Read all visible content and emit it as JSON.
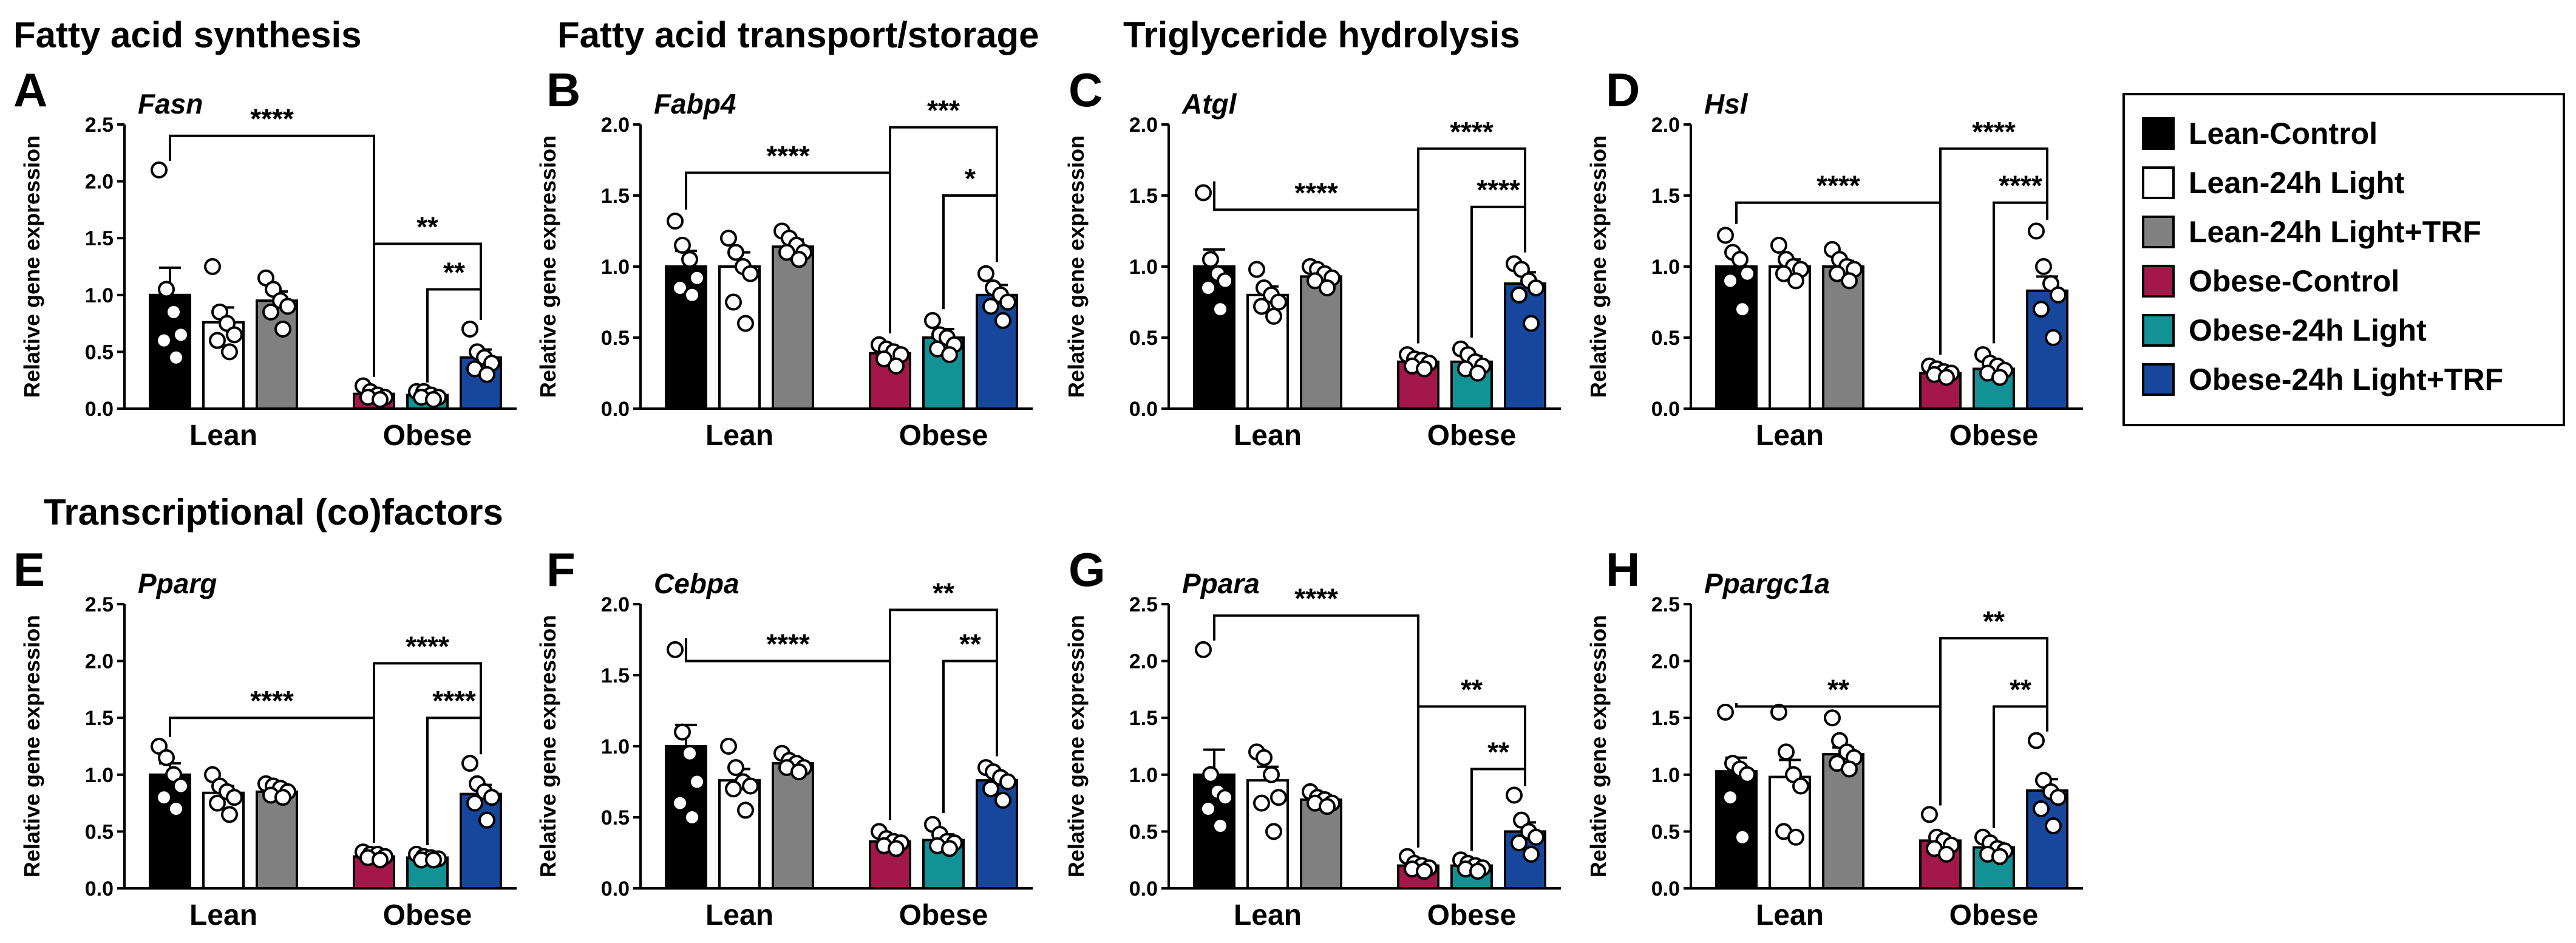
{
  "section_titles": {
    "synthesis": "Fatty acid synthesis",
    "transport": "Fatty acid transport/storage",
    "hydrolysis": "Triglyceride hydrolysis",
    "transcription": "Transcriptional (co)factors"
  },
  "legend": [
    {
      "name": "Lean-Control",
      "color": "#000000"
    },
    {
      "name": "Lean-24h Light",
      "color": "#ffffff"
    },
    {
      "name": "Lean-24h Light+TRF",
      "color": "#808080"
    },
    {
      "name": "Obese-Control",
      "color": "#a3174b"
    },
    {
      "name": "Obese-24h Light",
      "color": "#129295"
    },
    {
      "name": "Obese-24h Light+TRF",
      "color": "#16479c"
    }
  ],
  "chart_data": [
    {
      "type": "bar",
      "panel": "A",
      "title": "Fasn",
      "ylabel": "Relative gene expression",
      "ylim": [
        0,
        2.5
      ],
      "yticks": [
        "0.0",
        "0.5",
        "1.0",
        "1.5",
        "2.0",
        "2.5"
      ],
      "groups": [
        "Lean",
        "Obese"
      ],
      "series": [
        "Lean-Control",
        "Lean-24h Light",
        "Lean-24h Light+TRF",
        "Obese-Control",
        "Obese-24h Light",
        "Obese-24h Light+TRF"
      ],
      "values": [
        1.0,
        0.76,
        0.95,
        0.13,
        0.12,
        0.45
      ],
      "errors": [
        0.24,
        0.13,
        0.08,
        0.03,
        0.02,
        0.07
      ],
      "points": [
        [
          2.1,
          1.05,
          0.85,
          0.65,
          0.6,
          0.45
        ],
        [
          1.25,
          0.85,
          0.75,
          0.65,
          0.6,
          0.5
        ],
        [
          1.15,
          1.05,
          0.95,
          0.9,
          0.85,
          0.7
        ],
        [
          0.2,
          0.15,
          0.12,
          0.1,
          0.1,
          0.08
        ],
        [
          0.15,
          0.15,
          0.12,
          0.1,
          0.1,
          0.08
        ],
        [
          0.7,
          0.5,
          0.45,
          0.4,
          0.35,
          0.3
        ]
      ],
      "brackets": [
        {
          "from": 0,
          "to": 3,
          "level": 2.4,
          "label": "****"
        },
        {
          "from": 3,
          "to": 5,
          "level": 1.45,
          "label": "**"
        },
        {
          "from": 4,
          "to": 5,
          "level": 1.05,
          "label": "**"
        }
      ]
    },
    {
      "type": "bar",
      "panel": "B",
      "title": "Fabp4",
      "ylabel": "Relative gene expression",
      "ylim": [
        0,
        2.0
      ],
      "yticks": [
        "0.0",
        "0.5",
        "1.0",
        "1.5",
        "2.0"
      ],
      "groups": [
        "Lean",
        "Obese"
      ],
      "series": [
        "Lean-Control",
        "Lean-24h Light",
        "Lean-24h Light+TRF",
        "Obese-Control",
        "Obese-24h Light",
        "Obese-24h Light+TRF"
      ],
      "values": [
        1.0,
        1.0,
        1.14,
        0.39,
        0.5,
        0.8
      ],
      "errors": [
        0.11,
        0.1,
        0.05,
        0.03,
        0.06,
        0.07
      ],
      "points": [
        [
          1.32,
          1.15,
          1.05,
          0.92,
          0.85,
          0.8
        ],
        [
          1.2,
          1.1,
          1.0,
          0.95,
          0.75,
          0.6
        ],
        [
          1.25,
          1.2,
          1.15,
          1.1,
          1.1,
          1.05
        ],
        [
          0.45,
          0.42,
          0.4,
          0.38,
          0.35,
          0.3
        ],
        [
          0.62,
          0.52,
          0.5,
          0.45,
          0.42,
          0.38
        ],
        [
          0.95,
          0.85,
          0.8,
          0.75,
          0.72,
          0.62
        ]
      ],
      "brackets": [
        {
          "from": 0,
          "to": 3,
          "level": 1.66,
          "label": "****"
        },
        {
          "from": 3,
          "to": 5,
          "level": 1.98,
          "label": "***"
        },
        {
          "from": 4,
          "to": 5,
          "level": 1.5,
          "label": "*"
        }
      ]
    },
    {
      "type": "bar",
      "panel": "C",
      "title": "Atgl",
      "ylabel": "Relative gene expression",
      "ylim": [
        0,
        2.0
      ],
      "yticks": [
        "0.0",
        "0.5",
        "1.0",
        "1.5",
        "2.0"
      ],
      "groups": [
        "Lean",
        "Obese"
      ],
      "series": [
        "Lean-Control",
        "Lean-24h Light",
        "Lean-24h Light+TRF",
        "Obese-Control",
        "Obese-24h Light",
        "Obese-24h Light+TRF"
      ],
      "values": [
        1.0,
        0.8,
        0.93,
        0.33,
        0.33,
        0.88
      ],
      "errors": [
        0.12,
        0.06,
        0.04,
        0.03,
        0.04,
        0.08
      ],
      "points": [
        [
          1.52,
          1.05,
          0.95,
          0.9,
          0.85,
          0.7
        ],
        [
          0.98,
          0.85,
          0.8,
          0.75,
          0.72,
          0.65
        ],
        [
          1.0,
          0.98,
          0.95,
          0.92,
          0.9,
          0.85
        ],
        [
          0.38,
          0.35,
          0.34,
          0.32,
          0.3,
          0.28
        ],
        [
          0.42,
          0.38,
          0.33,
          0.3,
          0.28,
          0.25
        ],
        [
          1.02,
          0.98,
          0.9,
          0.85,
          0.8,
          0.6
        ]
      ],
      "brackets": [
        {
          "from": 0,
          "to": 3,
          "level": 1.4,
          "label": "****"
        },
        {
          "from": 3,
          "to": 5,
          "level": 1.83,
          "label": "****"
        },
        {
          "from": 4,
          "to": 5,
          "level": 1.42,
          "label": "****"
        }
      ]
    },
    {
      "type": "bar",
      "panel": "D",
      "title": "Hsl",
      "ylabel": "Relative gene expression",
      "ylim": [
        0,
        2.0
      ],
      "yticks": [
        "0.0",
        "0.5",
        "1.0",
        "1.5",
        "2.0"
      ],
      "groups": [
        "Lean",
        "Obese"
      ],
      "series": [
        "Lean-Control",
        "Lean-24h Light",
        "Lean-24h Light+TRF",
        "Obese-Control",
        "Obese-24h Light",
        "Obese-24h Light+TRF"
      ],
      "values": [
        1.0,
        1.0,
        1.0,
        0.25,
        0.28,
        0.83
      ],
      "errors": [
        0.08,
        0.05,
        0.04,
        0.02,
        0.04,
        0.1
      ],
      "points": [
        [
          1.22,
          1.1,
          1.05,
          0.95,
          0.9,
          0.7
        ],
        [
          1.15,
          1.05,
          1.0,
          0.98,
          0.95,
          0.9
        ],
        [
          1.12,
          1.05,
          1.0,
          0.98,
          0.95,
          0.9
        ],
        [
          0.3,
          0.28,
          0.26,
          0.25,
          0.24,
          0.22
        ],
        [
          0.38,
          0.32,
          0.3,
          0.27,
          0.25,
          0.22
        ],
        [
          1.25,
          1.0,
          0.88,
          0.8,
          0.7,
          0.5
        ]
      ],
      "brackets": [
        {
          "from": 0,
          "to": 3,
          "level": 1.45,
          "label": "****"
        },
        {
          "from": 3,
          "to": 5,
          "level": 1.83,
          "label": "****"
        },
        {
          "from": 4,
          "to": 5,
          "level": 1.45,
          "label": "****"
        }
      ]
    },
    {
      "type": "bar",
      "panel": "E",
      "title": "Pparg",
      "ylabel": "Relative gene expression",
      "ylim": [
        0,
        2.5
      ],
      "yticks": [
        "0.0",
        "0.5",
        "1.0",
        "1.5",
        "2.0",
        "2.5"
      ],
      "groups": [
        "Lean",
        "Obese"
      ],
      "series": [
        "Lean-Control",
        "Lean-24h Light",
        "Lean-24h Light+TRF",
        "Obese-Control",
        "Obese-24h Light",
        "Obese-24h Light+TRF"
      ],
      "values": [
        1.0,
        0.84,
        0.85,
        0.28,
        0.27,
        0.83
      ],
      "errors": [
        0.1,
        0.06,
        0.03,
        0.02,
        0.02,
        0.08
      ],
      "points": [
        [
          1.25,
          1.15,
          1.0,
          0.9,
          0.8,
          0.7
        ],
        [
          1.0,
          0.9,
          0.85,
          0.8,
          0.75,
          0.65
        ],
        [
          0.92,
          0.9,
          0.88,
          0.85,
          0.82,
          0.8
        ],
        [
          0.32,
          0.3,
          0.3,
          0.28,
          0.27,
          0.25
        ],
        [
          0.3,
          0.28,
          0.27,
          0.26,
          0.25,
          0.25
        ],
        [
          1.1,
          0.92,
          0.85,
          0.8,
          0.75,
          0.6
        ]
      ],
      "brackets": [
        {
          "from": 0,
          "to": 3,
          "level": 1.5,
          "label": "****"
        },
        {
          "from": 3,
          "to": 5,
          "level": 1.98,
          "label": "****"
        },
        {
          "from": 4,
          "to": 5,
          "level": 1.5,
          "label": "****"
        }
      ]
    },
    {
      "type": "bar",
      "panel": "F",
      "title": "Cebpa",
      "ylabel": "Relative gene expression",
      "ylim": [
        0,
        2.0
      ],
      "yticks": [
        "0.0",
        "0.5",
        "1.0",
        "1.5",
        "2.0"
      ],
      "groups": [
        "Lean",
        "Obese"
      ],
      "series": [
        "Lean-Control",
        "Lean-24h Light",
        "Lean-24h Light+TRF",
        "Obese-Control",
        "Obese-24h Light",
        "Obese-24h Light+TRF"
      ],
      "values": [
        1.0,
        0.76,
        0.88,
        0.33,
        0.34,
        0.76
      ],
      "errors": [
        0.15,
        0.08,
        0.03,
        0.02,
        0.04,
        0.05
      ],
      "points": [
        [
          1.68,
          1.1,
          0.95,
          0.75,
          0.6,
          0.5
        ],
        [
          1.0,
          0.85,
          0.75,
          0.72,
          0.7,
          0.55
        ],
        [
          0.95,
          0.9,
          0.88,
          0.85,
          0.85,
          0.82
        ],
        [
          0.4,
          0.35,
          0.33,
          0.32,
          0.3,
          0.28
        ],
        [
          0.45,
          0.38,
          0.33,
          0.32,
          0.3,
          0.28
        ],
        [
          0.85,
          0.82,
          0.78,
          0.75,
          0.7,
          0.62
        ]
      ],
      "brackets": [
        {
          "from": 0,
          "to": 3,
          "level": 1.6,
          "label": "****"
        },
        {
          "from": 3,
          "to": 5,
          "level": 1.96,
          "label": "**"
        },
        {
          "from": 4,
          "to": 5,
          "level": 1.6,
          "label": "**"
        }
      ]
    },
    {
      "type": "bar",
      "panel": "G",
      "title": "Ppara",
      "ylabel": "Relative gene expression",
      "ylim": [
        0,
        2.5
      ],
      "yticks": [
        "0.0",
        "0.5",
        "1.0",
        "1.5",
        "2.0",
        "2.5"
      ],
      "groups": [
        "Lean",
        "Obese"
      ],
      "series": [
        "Lean-Control",
        "Lean-24h Light",
        "Lean-24h Light+TRF",
        "Obese-Control",
        "Obese-24h Light",
        "Obese-24h Light+TRF"
      ],
      "values": [
        1.0,
        0.95,
        0.78,
        0.2,
        0.2,
        0.5
      ],
      "errors": [
        0.22,
        0.12,
        0.04,
        0.02,
        0.02,
        0.08
      ],
      "points": [
        [
          2.1,
          1.0,
          0.85,
          0.8,
          0.7,
          0.55
        ],
        [
          1.2,
          1.15,
          1.0,
          0.8,
          0.75,
          0.5
        ],
        [
          0.85,
          0.8,
          0.78,
          0.75,
          0.75,
          0.72
        ],
        [
          0.28,
          0.22,
          0.2,
          0.18,
          0.17,
          0.15
        ],
        [
          0.25,
          0.22,
          0.2,
          0.18,
          0.17,
          0.15
        ],
        [
          0.82,
          0.6,
          0.5,
          0.45,
          0.4,
          0.3
        ]
      ],
      "brackets": [
        {
          "from": 0,
          "to": 3,
          "level": 2.4,
          "label": "****"
        },
        {
          "from": 3,
          "to": 5,
          "level": 1.6,
          "label": "**"
        },
        {
          "from": 4,
          "to": 5,
          "level": 1.05,
          "label": "**"
        }
      ]
    },
    {
      "type": "bar",
      "panel": "H",
      "title": "Ppargc1a",
      "ylabel": "Relative gene expression",
      "ylim": [
        0,
        2.5
      ],
      "yticks": [
        "0.0",
        "0.5",
        "1.0",
        "1.5",
        "2.0",
        "2.5"
      ],
      "groups": [
        "Lean",
        "Obese"
      ],
      "series": [
        "Lean-Control",
        "Lean-24h Light",
        "Lean-24h Light+TRF",
        "Obese-Control",
        "Obese-24h Light",
        "Obese-24h Light+TRF"
      ],
      "values": [
        1.03,
        0.98,
        1.18,
        0.42,
        0.36,
        0.86
      ],
      "errors": [
        0.12,
        0.15,
        0.06,
        0.04,
        0.04,
        0.1
      ],
      "points": [
        [
          1.55,
          1.1,
          1.05,
          1.0,
          0.8,
          0.45
        ],
        [
          1.55,
          1.2,
          1.0,
          0.9,
          0.5,
          0.45
        ],
        [
          1.5,
          1.3,
          1.2,
          1.15,
          1.1,
          1.05
        ],
        [
          0.65,
          0.45,
          0.42,
          0.38,
          0.35,
          0.3
        ],
        [
          0.45,
          0.4,
          0.35,
          0.33,
          0.3,
          0.28
        ],
        [
          1.3,
          0.95,
          0.85,
          0.8,
          0.7,
          0.55
        ]
      ],
      "brackets": [
        {
          "from": 0,
          "to": 3,
          "level": 1.6,
          "label": "**"
        },
        {
          "from": 3,
          "to": 5,
          "level": 2.2,
          "label": "**"
        },
        {
          "from": 4,
          "to": 5,
          "level": 1.6,
          "label": "**"
        }
      ]
    }
  ]
}
